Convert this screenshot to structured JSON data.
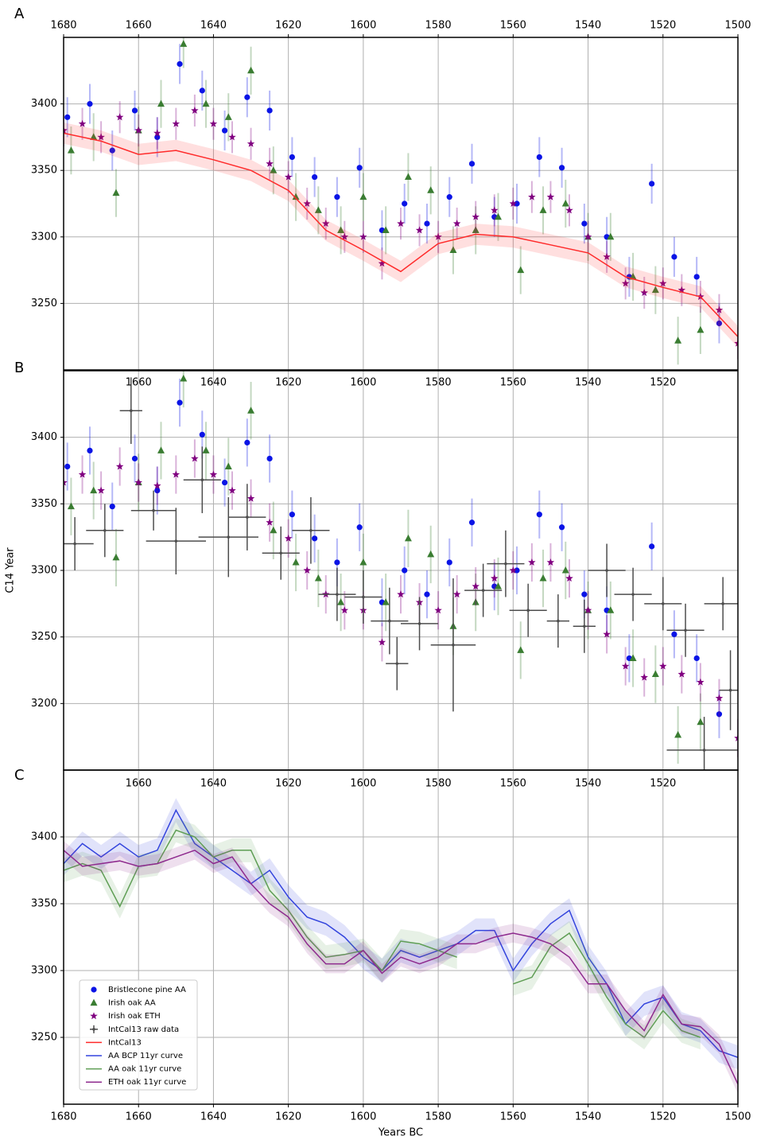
{
  "chart_data": [
    {
      "type": "scatter",
      "label": "A",
      "xlim": [
        1680,
        1500
      ],
      "ylim": [
        3200,
        3450
      ],
      "xticks": [
        1680,
        1660,
        1640,
        1620,
        1600,
        1580,
        1560,
        1540,
        1520,
        1500
      ],
      "yticks": [
        3250,
        3300,
        3350,
        3400
      ],
      "grid": true,
      "series": [
        {
          "name": "Bristlecone pine AA",
          "color": "#0a14e6",
          "marker": "circle",
          "error": 15,
          "x": [
            1679,
            1673,
            1667,
            1661,
            1655,
            1649,
            1643,
            1637,
            1631,
            1625,
            1619,
            1613,
            1607,
            1601,
            1595,
            1589,
            1583,
            1577,
            1571,
            1565,
            1559,
            1553,
            1547,
            1541,
            1535,
            1529,
            1523,
            1517,
            1511,
            1505
          ],
          "values": [
            3390,
            3400,
            3365,
            3395,
            3375,
            3430,
            3410,
            3380,
            3405,
            3395,
            3360,
            3345,
            3330,
            3352,
            3305,
            3325,
            3310,
            3330,
            3355,
            3315,
            3325,
            3360,
            3352,
            3310,
            3300,
            3270,
            3340,
            3285,
            3270,
            3235
          ]
        },
        {
          "name": "Irish oak AA",
          "color": "#3a7d32",
          "marker": "triangle",
          "error": 18,
          "x": [
            1678,
            1672,
            1666,
            1660,
            1654,
            1648,
            1642,
            1636,
            1630,
            1624,
            1618,
            1612,
            1606,
            1600,
            1594,
            1588,
            1582,
            1576,
            1570,
            1564,
            1558,
            1552,
            1546,
            1540,
            1534,
            1528,
            1522,
            1516,
            1510
          ],
          "values": [
            3365,
            3375,
            3333,
            3380,
            3400,
            3445,
            3400,
            3390,
            3425,
            3350,
            3330,
            3320,
            3305,
            3330,
            3305,
            3345,
            3335,
            3290,
            3305,
            3315,
            3275,
            3320,
            3325,
            3300,
            3300,
            3270,
            3260,
            3222,
            3230
          ]
        },
        {
          "name": "Irish oak ETH",
          "color": "#800080",
          "marker": "star",
          "error": 12,
          "x": [
            1680,
            1675,
            1670,
            1665,
            1660,
            1655,
            1650,
            1645,
            1640,
            1635,
            1630,
            1625,
            1620,
            1615,
            1610,
            1605,
            1600,
            1595,
            1590,
            1585,
            1580,
            1575,
            1570,
            1565,
            1560,
            1555,
            1550,
            1545,
            1540,
            1535,
            1530,
            1525,
            1520,
            1515,
            1510,
            1505,
            1500
          ],
          "values": [
            3380,
            3385,
            3375,
            3390,
            3380,
            3378,
            3385,
            3395,
            3385,
            3375,
            3370,
            3355,
            3345,
            3325,
            3310,
            3300,
            3300,
            3280,
            3310,
            3305,
            3300,
            3310,
            3315,
            3320,
            3325,
            3330,
            3330,
            3320,
            3300,
            3285,
            3265,
            3258,
            3265,
            3260,
            3255,
            3245,
            3220
          ]
        },
        {
          "name": "IntCal13",
          "color": "#ff2a2a",
          "uncertainty": 8,
          "x": [
            1680,
            1670,
            1660,
            1650,
            1640,
            1630,
            1620,
            1610,
            1600,
            1590,
            1580,
            1570,
            1560,
            1550,
            1540,
            1530,
            1520,
            1510,
            1500
          ],
          "values": [
            3378,
            3372,
            3362,
            3365,
            3358,
            3350,
            3335,
            3305,
            3290,
            3274,
            3295,
            3302,
            3300,
            3294,
            3288,
            3270,
            3262,
            3255,
            3225
          ]
        }
      ]
    },
    {
      "type": "scatter",
      "label": "B",
      "ylabel": "C14 Year",
      "xlim": [
        1680,
        1500
      ],
      "ylim": [
        3150,
        3450
      ],
      "xticks": [
        1660,
        1640,
        1620,
        1600,
        1580,
        1560,
        1540,
        1520
      ],
      "yticks": [
        3200,
        3250,
        3300,
        3350,
        3400
      ],
      "grid": true,
      "series": [
        {
          "name": "IntCal13 raw data",
          "color": "#4d4d4d",
          "marker": "plus",
          "x": [
            1677,
            1669,
            1662,
            1656,
            1650,
            1643,
            1636,
            1631,
            1622,
            1614,
            1607,
            1600,
            1593,
            1591,
            1585,
            1576,
            1568,
            1562,
            1556,
            1548,
            1541,
            1535,
            1528,
            1520,
            1514,
            1509,
            1504,
            1502
          ],
          "values": [
            3320,
            3330,
            3420,
            3345,
            3322,
            3368,
            3325,
            3340,
            3313,
            3330,
            3282,
            3280,
            3262,
            3230,
            3260,
            3244,
            3285,
            3305,
            3270,
            3262,
            3258,
            3300,
            3282,
            3275,
            3255,
            3165,
            3275,
            3210
          ],
          "xerr": [
            5,
            5,
            3,
            6,
            8,
            5,
            8,
            5,
            5,
            5,
            5,
            5,
            5,
            3,
            5,
            6,
            5,
            5,
            5,
            3,
            3,
            5,
            5,
            5,
            5,
            10,
            5,
            3
          ],
          "yerr": [
            20,
            20,
            25,
            15,
            25,
            25,
            30,
            25,
            20,
            25,
            20,
            20,
            25,
            20,
            20,
            50,
            20,
            25,
            20,
            20,
            20,
            20,
            20,
            20,
            20,
            25,
            20,
            30
          ]
        }
      ]
    },
    {
      "type": "line",
      "label": "C",
      "xlabel": "Years BC",
      "xlim": [
        1680,
        1500
      ],
      "ylim": [
        3200,
        3450
      ],
      "xticks": [
        1680,
        1660,
        1640,
        1620,
        1600,
        1580,
        1560,
        1540,
        1520,
        1500
      ],
      "top_xticks": [
        1660,
        1640,
        1620,
        1600,
        1580,
        1560,
        1540,
        1520
      ],
      "yticks": [
        3250,
        3300,
        3350,
        3400
      ],
      "grid": true,
      "x": [
        1680,
        1675,
        1670,
        1665,
        1660,
        1655,
        1650,
        1645,
        1640,
        1635,
        1630,
        1625,
        1620,
        1615,
        1610,
        1605,
        1600,
        1595,
        1590,
        1585,
        1580,
        1575,
        1570,
        1565,
        1560,
        1555,
        1550,
        1545,
        1540,
        1535,
        1530,
        1525,
        1520,
        1515,
        1510,
        1505,
        1500
      ],
      "series": [
        {
          "name": "AA BCP 11yr curve",
          "color": "#3344dd",
          "uncertainty": 9,
          "values": [
            3380,
            3395,
            3385,
            3395,
            3385,
            3390,
            3420,
            3395,
            3385,
            3375,
            3365,
            3375,
            3355,
            3340,
            3335,
            3325,
            3310,
            3300,
            3315,
            3310,
            3315,
            3320,
            3330,
            3330,
            3300,
            3320,
            3335,
            3345,
            3310,
            3290,
            3260,
            3275,
            3280,
            3260,
            3255,
            3240,
            3235
          ]
        },
        {
          "name": "AA oak 11yr curve",
          "color": "#5f9e55",
          "uncertainty": 9,
          "values": [
            3375,
            3380,
            3375,
            3348,
            3378,
            3380,
            3405,
            3400,
            3385,
            3390,
            3390,
            3360,
            3345,
            3325,
            3310,
            3312,
            3315,
            3300,
            3322,
            3320,
            3315,
            3310,
            null,
            null,
            3290,
            3295,
            3318,
            3328,
            3305,
            3280,
            3260,
            3250,
            3270,
            3255,
            3250,
            null,
            null
          ]
        },
        {
          "name": "ETH oak 11yr curve",
          "color": "#8e2a8e",
          "uncertainty": 7,
          "values": [
            3390,
            3378,
            3380,
            3382,
            3378,
            3380,
            3385,
            3390,
            3380,
            3385,
            3365,
            3350,
            3340,
            3320,
            3305,
            3305,
            3315,
            3298,
            3310,
            3305,
            3310,
            3320,
            3320,
            3325,
            3328,
            3325,
            3320,
            3310,
            3290,
            3290,
            3270,
            3255,
            3282,
            3260,
            3258,
            3245,
            3215
          ]
        }
      ]
    }
  ]
}
